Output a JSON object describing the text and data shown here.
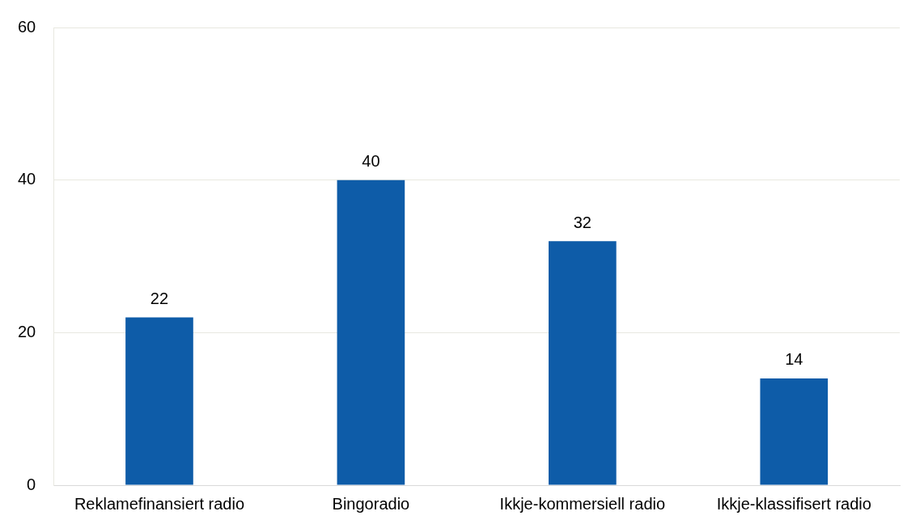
{
  "chart_data": {
    "type": "bar",
    "categories": [
      "Reklamefinansiert radio",
      "Bingoradio",
      "Ikkje-kommersiell radio",
      "Ikkje-klassifisert radio"
    ],
    "values": [
      22,
      40,
      32,
      14
    ],
    "color": "#0e5ca8",
    "ylim": [
      0,
      60
    ],
    "yticks": [
      0,
      20,
      40,
      60
    ],
    "grid": "y",
    "data_labels": true
  }
}
